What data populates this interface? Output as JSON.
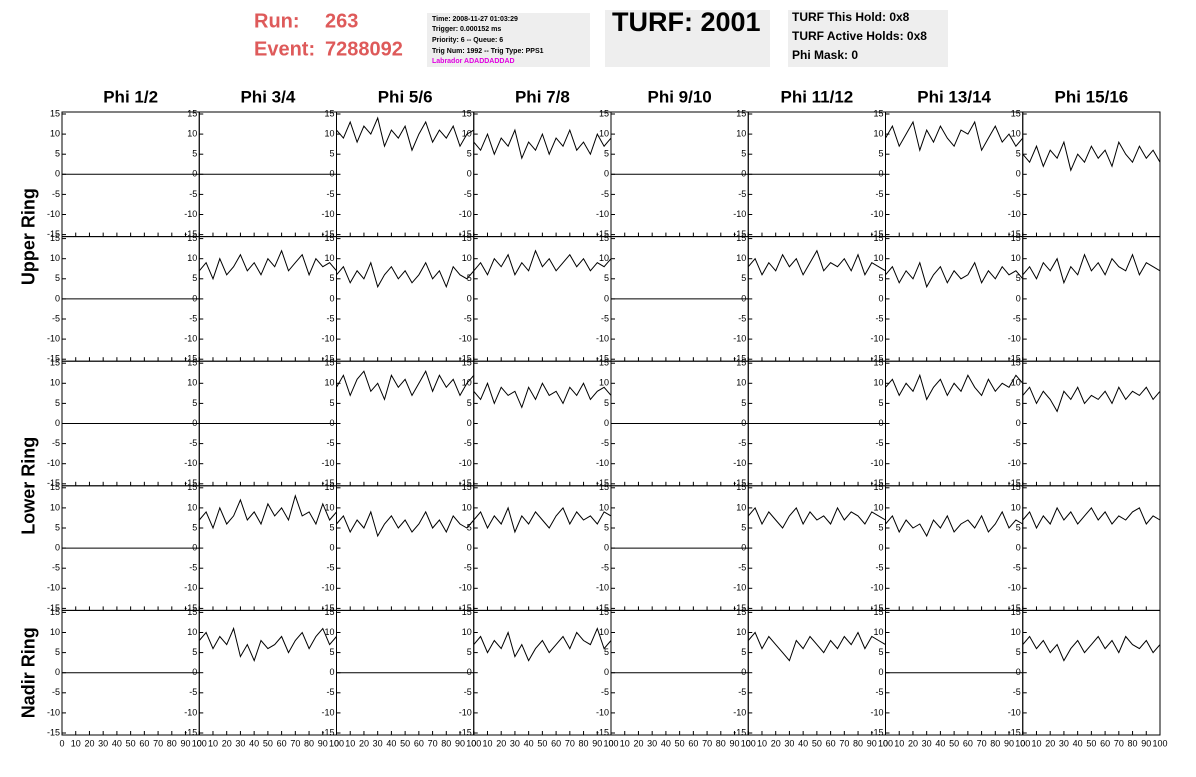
{
  "header": {
    "run_label": "Run:",
    "run": "263",
    "event_label": "Event:",
    "event": "7288092",
    "info": [
      "Time: 2008-11-27 01:03:29",
      "Trigger: 0.000152 ms",
      "Priority: 6 -- Queue: 6",
      "Trig Num: 1992 -- Trig Type: PPS1",
      "Labrador ADADDADDAD"
    ],
    "turf": "TURF: 2001",
    "turf_info": [
      "TURF This Hold: 0x8",
      "TURF Active Holds: 0x8",
      "Phi Mask: 0"
    ]
  },
  "chart_data": {
    "type": "line",
    "color": "#000000",
    "columns": [
      "Phi 1/2",
      "Phi 3/4",
      "Phi 5/6",
      "Phi 7/8",
      "Phi 9/10",
      "Phi 11/12",
      "Phi 13/14",
      "Phi 15/16"
    ],
    "rows": [
      "Upper Ring",
      "Lower Ring",
      "Nadir Ring"
    ],
    "xlim": [
      0,
      100
    ],
    "xticks": [
      0,
      10,
      20,
      30,
      40,
      50,
      60,
      70,
      80,
      90,
      100
    ],
    "ylim": [
      -15,
      15
    ],
    "yticks": [
      -15,
      -10,
      -5,
      0,
      5,
      10,
      15
    ],
    "x": [
      0,
      5,
      10,
      15,
      20,
      25,
      30,
      35,
      40,
      45,
      50,
      55,
      60,
      65,
      70,
      75,
      80,
      85,
      90,
      95,
      100
    ],
    "panels": [
      [
        [
          0,
          0,
          0,
          0,
          0,
          0,
          0,
          0,
          0,
          0,
          0,
          0,
          0,
          0,
          0,
          0,
          0,
          0,
          0,
          0,
          0
        ],
        [
          0,
          0,
          0,
          0,
          0,
          0,
          0,
          0,
          0,
          0,
          0,
          0,
          0,
          0,
          0,
          0,
          0,
          0,
          0,
          0,
          0
        ],
        [
          11,
          9,
          13,
          8,
          12,
          10,
          14,
          7,
          11,
          9,
          12,
          6,
          10,
          13,
          8,
          11,
          9,
          12,
          7,
          10,
          11
        ],
        [
          8,
          6,
          10,
          5,
          9,
          7,
          11,
          4,
          8,
          6,
          10,
          5,
          9,
          7,
          11,
          6,
          8,
          5,
          10,
          7,
          9
        ],
        [
          0,
          0,
          0,
          0,
          0,
          0,
          0,
          0,
          0,
          0,
          0,
          0,
          0,
          0,
          0,
          0,
          0,
          0,
          0,
          0,
          0
        ],
        [
          0,
          0,
          0,
          0,
          0,
          0,
          0,
          0,
          0,
          0,
          0,
          0,
          0,
          0,
          0,
          0,
          0,
          0,
          0,
          0,
          0
        ],
        [
          9,
          12,
          7,
          10,
          13,
          6,
          11,
          8,
          12,
          9,
          7,
          11,
          10,
          13,
          6,
          9,
          12,
          8,
          10,
          7,
          9
        ],
        [
          5,
          3,
          7,
          2,
          6,
          4,
          8,
          1,
          5,
          3,
          7,
          4,
          6,
          2,
          8,
          5,
          3,
          7,
          4,
          6,
          3
        ]
      ],
      [
        [
          0,
          0,
          0,
          0,
          0,
          0,
          0,
          0,
          0,
          0,
          0,
          0,
          0,
          0,
          0,
          0,
          0,
          0,
          0,
          0,
          0
        ],
        [
          7,
          9,
          5,
          10,
          6,
          8,
          11,
          7,
          9,
          6,
          10,
          8,
          12,
          7,
          9,
          11,
          6,
          10,
          8,
          9,
          7
        ],
        [
          6,
          8,
          4,
          7,
          5,
          9,
          3,
          6,
          8,
          5,
          7,
          4,
          6,
          9,
          5,
          7,
          3,
          8,
          6,
          5,
          7
        ],
        [
          7,
          9,
          6,
          10,
          8,
          11,
          6,
          9,
          7,
          12,
          8,
          10,
          7,
          9,
          11,
          8,
          10,
          7,
          9,
          8,
          10
        ],
        [
          0,
          0,
          0,
          0,
          0,
          0,
          0,
          0,
          0,
          0,
          0,
          0,
          0,
          0,
          0,
          0,
          0,
          0,
          0,
          0,
          0
        ],
        [
          8,
          10,
          6,
          9,
          7,
          11,
          8,
          10,
          6,
          9,
          12,
          7,
          9,
          8,
          10,
          7,
          11,
          6,
          9,
          8,
          7
        ],
        [
          6,
          8,
          4,
          7,
          5,
          9,
          3,
          6,
          8,
          4,
          7,
          5,
          6,
          9,
          4,
          7,
          5,
          8,
          6,
          7,
          5
        ],
        [
          6,
          8,
          5,
          9,
          7,
          10,
          4,
          8,
          6,
          11,
          7,
          9,
          6,
          10,
          8,
          7,
          11,
          6,
          9,
          8,
          7
        ]
      ],
      [
        [
          0,
          0,
          0,
          0,
          0,
          0,
          0,
          0,
          0,
          0,
          0,
          0,
          0,
          0,
          0,
          0,
          0,
          0,
          0,
          0,
          0
        ],
        [
          0,
          0,
          0,
          0,
          0,
          0,
          0,
          0,
          0,
          0,
          0,
          0,
          0,
          0,
          0,
          0,
          0,
          0,
          0,
          0,
          0
        ],
        [
          9,
          12,
          7,
          11,
          13,
          8,
          10,
          6,
          12,
          9,
          11,
          7,
          10,
          13,
          8,
          12,
          9,
          11,
          7,
          10,
          12
        ],
        [
          8,
          6,
          10,
          5,
          9,
          7,
          8,
          4,
          9,
          6,
          10,
          7,
          8,
          5,
          9,
          7,
          10,
          6,
          8,
          9,
          7
        ],
        [
          0,
          0,
          0,
          0,
          0,
          0,
          0,
          0,
          0,
          0,
          0,
          0,
          0,
          0,
          0,
          0,
          0,
          0,
          0,
          0,
          0
        ],
        [
          0,
          0,
          0,
          0,
          0,
          0,
          0,
          0,
          0,
          0,
          0,
          0,
          0,
          0,
          0,
          0,
          0,
          0,
          0,
          0,
          0
        ],
        [
          9,
          11,
          7,
          10,
          8,
          12,
          6,
          9,
          11,
          7,
          10,
          8,
          12,
          9,
          7,
          11,
          8,
          10,
          9,
          12,
          10
        ],
        [
          7,
          9,
          5,
          8,
          6,
          3,
          8,
          6,
          9,
          5,
          7,
          6,
          8,
          5,
          9,
          6,
          8,
          7,
          9,
          6,
          8
        ]
      ],
      [
        [
          0,
          0,
          0,
          0,
          0,
          0,
          0,
          0,
          0,
          0,
          0,
          0,
          0,
          0,
          0,
          0,
          0,
          0,
          0,
          0,
          0
        ],
        [
          7,
          9,
          5,
          10,
          6,
          8,
          12,
          7,
          9,
          6,
          11,
          8,
          10,
          7,
          13,
          8,
          9,
          6,
          11,
          7,
          9
        ],
        [
          6,
          8,
          4,
          7,
          5,
          9,
          3,
          6,
          8,
          5,
          7,
          4,
          6,
          9,
          5,
          7,
          4,
          8,
          6,
          5,
          7
        ],
        [
          7,
          9,
          5,
          8,
          6,
          10,
          4,
          8,
          6,
          9,
          7,
          5,
          8,
          10,
          6,
          9,
          7,
          8,
          6,
          9,
          8
        ],
        [
          0,
          0,
          0,
          0,
          0,
          0,
          0,
          0,
          0,
          0,
          0,
          0,
          0,
          0,
          0,
          0,
          0,
          0,
          0,
          0,
          0
        ],
        [
          8,
          10,
          6,
          9,
          7,
          5,
          8,
          10,
          6,
          9,
          7,
          8,
          6,
          10,
          7,
          9,
          8,
          6,
          9,
          8,
          7
        ],
        [
          6,
          8,
          4,
          7,
          5,
          6,
          3,
          7,
          5,
          8,
          4,
          6,
          7,
          5,
          8,
          4,
          6,
          9,
          5,
          7,
          6
        ],
        [
          7,
          9,
          5,
          8,
          6,
          10,
          7,
          9,
          6,
          8,
          10,
          7,
          9,
          6,
          8,
          7,
          9,
          10,
          6,
          8,
          7
        ]
      ],
      [
        [
          0,
          0,
          0,
          0,
          0,
          0,
          0,
          0,
          0,
          0,
          0,
          0,
          0,
          0,
          0,
          0,
          0,
          0,
          0,
          0,
          0
        ],
        [
          8,
          10,
          6,
          9,
          7,
          11,
          4,
          7,
          3,
          8,
          6,
          7,
          9,
          5,
          8,
          10,
          6,
          9,
          11,
          7,
          9
        ],
        [
          0,
          0,
          0,
          0,
          0,
          0,
          0,
          0,
          0,
          0,
          0,
          0,
          0,
          0,
          0,
          0,
          0,
          0,
          0,
          0,
          0
        ],
        [
          7,
          9,
          5,
          8,
          6,
          10,
          4,
          7,
          3,
          6,
          8,
          5,
          7,
          9,
          6,
          10,
          8,
          7,
          11,
          6,
          8
        ],
        [
          0,
          0,
          0,
          0,
          0,
          0,
          0,
          0,
          0,
          0,
          0,
          0,
          0,
          0,
          0,
          0,
          0,
          0,
          0,
          0,
          0
        ],
        [
          8,
          10,
          6,
          9,
          7,
          5,
          3,
          8,
          6,
          9,
          7,
          5,
          8,
          6,
          9,
          7,
          10,
          6,
          9,
          8,
          7
        ],
        [
          0,
          0,
          0,
          0,
          0,
          0,
          0,
          0,
          0,
          0,
          0,
          0,
          0,
          0,
          0,
          0,
          0,
          0,
          0,
          0,
          0
        ],
        [
          7,
          9,
          6,
          8,
          5,
          7,
          3,
          6,
          8,
          5,
          7,
          9,
          6,
          8,
          5,
          9,
          7,
          6,
          8,
          5,
          7
        ]
      ]
    ]
  }
}
